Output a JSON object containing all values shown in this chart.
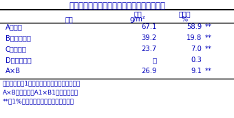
{
  "title": "表２．精籾収量に及ぼす要因の効果と寄与率",
  "header_row1": [
    "",
    "効果",
    "寄与率",
    ""
  ],
  "header_row2": [
    "要因",
    "g/m²",
    "%",
    ""
  ],
  "rows": [
    [
      "A：作期",
      "67.1",
      "58.9",
      "**"
    ],
    [
      "B：栽植様式",
      "39.2",
      "19.8",
      "**"
    ],
    [
      "C：基肥量",
      "23.7",
      "7.0",
      "**"
    ],
    [
      "D：穂肥施用",
      "－",
      "0.3",
      ""
    ],
    [
      "A×B",
      "26.9",
      "9.1",
      "**"
    ]
  ],
  "footnotes": [
    "効果は、水準1の全体の平均に対する増加量。",
    "A×Bの効果は、A1×B1の交互作用。",
    "**は1%水準で有意であることを示す。"
  ],
  "title_color": "#0000BB",
  "text_color": "#0000BB",
  "bg_color": "#FFFFFF",
  "line_color": "#000000",
  "title_fontsize": 8.5,
  "header_fontsize": 7.0,
  "data_fontsize": 7.2,
  "footnote_fontsize": 6.5
}
